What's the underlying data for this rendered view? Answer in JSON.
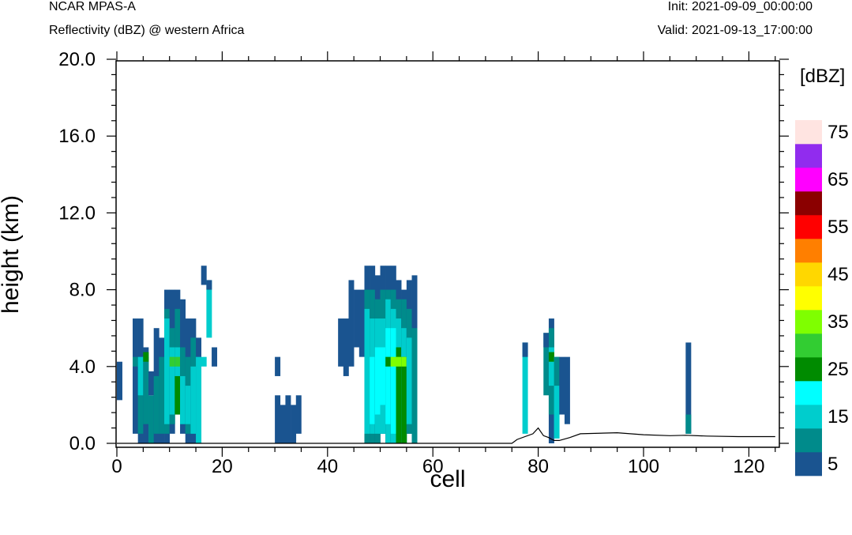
{
  "header": {
    "model": "NCAR MPAS-A",
    "field": "Reflectivity (dBZ) @ western Africa",
    "init": "Init: 2021-09-09_00:00:00",
    "valid": "Valid: 2021-09-13_17:00:00"
  },
  "chart_data": {
    "type": "heatmap",
    "title": "Reflectivity (dBZ) @ western Africa",
    "xlabel": "cell",
    "ylabel": "height (km)",
    "xlim": [
      0,
      125
    ],
    "ylim": [
      0,
      20
    ],
    "xticks": [
      "0",
      "20",
      "40",
      "60",
      "80",
      "100",
      "120"
    ],
    "yticks": [
      "0.0",
      "4.0",
      "8.0",
      "12.0",
      "16.0",
      "20.0"
    ],
    "colorbar": {
      "title": "[dBZ]",
      "levels": [
        5,
        10,
        15,
        20,
        25,
        30,
        35,
        40,
        45,
        50,
        55,
        60,
        65,
        70,
        75
      ],
      "labels": [
        "5",
        "15",
        "25",
        "35",
        "45",
        "55",
        "65",
        "75"
      ],
      "colors": [
        "#1a5490",
        "#008b8b",
        "#00cdcd",
        "#00ffff",
        "#008b00",
        "#32cd32",
        "#7fff00",
        "#ffff00",
        "#ffd700",
        "#ff7f00",
        "#ff0000",
        "#8b0000",
        "#ff00ff",
        "#912cee",
        "#ffe4e1"
      ]
    },
    "cell_width": 1,
    "cell_height_km": 0.5,
    "columns": [
      {
        "x": 0,
        "bins": [
          [
            2.25,
            4.25,
            5
          ]
        ]
      },
      {
        "x": 3,
        "bins": [
          [
            0.5,
            6.5,
            5
          ],
          [
            4.0,
            4.5,
            10
          ]
        ]
      },
      {
        "x": 4,
        "bins": [
          [
            0,
            6.5,
            5
          ],
          [
            0.5,
            4.0,
            10
          ],
          [
            2.5,
            4.5,
            15
          ]
        ]
      },
      {
        "x": 5,
        "bins": [
          [
            0,
            5.0,
            5
          ],
          [
            1.0,
            4.5,
            10
          ],
          [
            4.25,
            4.75,
            25
          ]
        ]
      },
      {
        "x": 6,
        "bins": [
          [
            0,
            2.5,
            10
          ],
          [
            2.5,
            3.75,
            5
          ]
        ]
      },
      {
        "x": 7,
        "bins": [
          [
            0,
            6.0,
            5
          ],
          [
            0.5,
            3.5,
            10
          ]
        ]
      },
      {
        "x": 8,
        "bins": [
          [
            0,
            5.5,
            5
          ],
          [
            0.5,
            4.5,
            10
          ]
        ]
      },
      {
        "x": 9,
        "bins": [
          [
            0,
            8.0,
            5
          ],
          [
            0.5,
            7.0,
            10
          ],
          [
            1.0,
            6.5,
            15
          ]
        ]
      },
      {
        "x": 10,
        "bins": [
          [
            0.5,
            8.0,
            5
          ],
          [
            1.0,
            6.0,
            10
          ],
          [
            1.5,
            5.0,
            15
          ],
          [
            4.0,
            4.5,
            30
          ]
        ]
      },
      {
        "x": 11,
        "bins": [
          [
            1.5,
            8.0,
            5
          ],
          [
            2.0,
            7.0,
            10
          ],
          [
            2.0,
            5.0,
            15
          ],
          [
            1.5,
            3.5,
            25
          ],
          [
            4.0,
            4.5,
            30
          ]
        ]
      },
      {
        "x": 12,
        "bins": [
          [
            0.5,
            7.5,
            5
          ],
          [
            1.0,
            5.0,
            10
          ],
          [
            1.0,
            3.5,
            15
          ]
        ]
      },
      {
        "x": 13,
        "bins": [
          [
            0,
            6.5,
            5
          ],
          [
            0.5,
            4.5,
            10
          ],
          [
            1.0,
            3.0,
            15
          ]
        ]
      },
      {
        "x": 14,
        "bins": [
          [
            0,
            6.5,
            5
          ],
          [
            0.5,
            5.5,
            10
          ],
          [
            0.5,
            4.0,
            15
          ]
        ]
      },
      {
        "x": 15,
        "bins": [
          [
            0,
            5.5,
            5
          ],
          [
            0,
            4.5,
            15
          ]
        ]
      },
      {
        "x": 16,
        "bins": [
          [
            8.25,
            9.25,
            5
          ],
          [
            4.0,
            4.5,
            15
          ]
        ]
      },
      {
        "x": 17,
        "bins": [
          [
            5.5,
            8.5,
            15
          ],
          [
            8.0,
            8.5,
            5
          ]
        ]
      },
      {
        "x": 18,
        "bins": [
          [
            4.0,
            5.0,
            5
          ]
        ]
      },
      {
        "x": 30,
        "bins": [
          [
            0,
            2.5,
            5
          ],
          [
            3.5,
            4.5,
            5
          ]
        ]
      },
      {
        "x": 31,
        "bins": [
          [
            0,
            2.0,
            5
          ]
        ]
      },
      {
        "x": 32,
        "bins": [
          [
            0,
            2.5,
            5
          ]
        ]
      },
      {
        "x": 33,
        "bins": [
          [
            0,
            2.0,
            5
          ]
        ]
      },
      {
        "x": 34,
        "bins": [
          [
            0.5,
            2.5,
            5
          ]
        ]
      },
      {
        "x": 42,
        "bins": [
          [
            4.0,
            6.5,
            5
          ]
        ]
      },
      {
        "x": 43,
        "bins": [
          [
            3.5,
            6.5,
            5
          ]
        ]
      },
      {
        "x": 44,
        "bins": [
          [
            4.0,
            8.5,
            5
          ]
        ]
      },
      {
        "x": 45,
        "bins": [
          [
            5.0,
            8.0,
            5
          ]
        ]
      },
      {
        "x": 46,
        "bins": [
          [
            4.5,
            8.0,
            5
          ]
        ]
      },
      {
        "x": 47,
        "bins": [
          [
            0,
            9.25,
            5
          ],
          [
            0,
            8.0,
            10
          ],
          [
            0.5,
            7.0,
            15
          ]
        ]
      },
      {
        "x": 48,
        "bins": [
          [
            0,
            9.25,
            5
          ],
          [
            0,
            8.0,
            10
          ],
          [
            0.5,
            6.5,
            15
          ],
          [
            1.0,
            4.5,
            20
          ]
        ]
      },
      {
        "x": 49,
        "bins": [
          [
            0,
            8.75,
            5
          ],
          [
            0,
            7.5,
            10
          ],
          [
            0.5,
            6.5,
            15
          ],
          [
            1.5,
            5.0,
            20
          ]
        ]
      },
      {
        "x": 50,
        "bins": [
          [
            0.5,
            9.25,
            5
          ],
          [
            0.5,
            8.0,
            10
          ],
          [
            0.5,
            6.5,
            15
          ],
          [
            2.0,
            5.0,
            20
          ]
        ]
      },
      {
        "x": 51,
        "bins": [
          [
            0,
            9.25,
            5
          ],
          [
            0,
            8.0,
            10
          ],
          [
            0,
            7.5,
            15
          ],
          [
            1.0,
            6.0,
            20
          ],
          [
            4.0,
            4.5,
            25
          ]
        ]
      },
      {
        "x": 52,
        "bins": [
          [
            0,
            9.25,
            5
          ],
          [
            0,
            8.0,
            10
          ],
          [
            0,
            7.0,
            15
          ],
          [
            0.5,
            6.0,
            20
          ],
          [
            4.0,
            4.5,
            35
          ]
        ]
      },
      {
        "x": 53,
        "bins": [
          [
            0,
            8.5,
            5
          ],
          [
            0,
            7.5,
            10
          ],
          [
            0,
            6.5,
            15
          ],
          [
            0,
            5.0,
            25
          ],
          [
            4.0,
            4.5,
            35
          ]
        ]
      },
      {
        "x": 54,
        "bins": [
          [
            0,
            8.0,
            5
          ],
          [
            0,
            7.5,
            10
          ],
          [
            0,
            6.0,
            15
          ],
          [
            0,
            4.5,
            25
          ],
          [
            4.0,
            4.5,
            35
          ]
        ]
      },
      {
        "x": 55,
        "bins": [
          [
            0.5,
            8.5,
            5
          ],
          [
            0.5,
            7.0,
            10
          ],
          [
            1.0,
            5.5,
            15
          ]
        ]
      },
      {
        "x": 56,
        "bins": [
          [
            0,
            8.75,
            5
          ],
          [
            0,
            6.0,
            10
          ]
        ]
      },
      {
        "x": 77,
        "bins": [
          [
            0.5,
            5.25,
            15
          ],
          [
            4.5,
            5.25,
            5
          ]
        ]
      },
      {
        "x": 81,
        "bins": [
          [
            2.5,
            5.75,
            10
          ],
          [
            5.0,
            5.75,
            5
          ]
        ]
      },
      {
        "x": 82,
        "bins": [
          [
            0,
            6.5,
            5
          ],
          [
            1.5,
            6.0,
            10
          ],
          [
            3.0,
            5.0,
            15
          ],
          [
            4.25,
            4.75,
            25
          ]
        ]
      },
      {
        "x": 83,
        "bins": [
          [
            0.25,
            4.5,
            15
          ],
          [
            3.0,
            4.5,
            10
          ]
        ]
      },
      {
        "x": 84,
        "bins": [
          [
            1.5,
            4.5,
            5
          ]
        ]
      },
      {
        "x": 85,
        "bins": [
          [
            1.0,
            4.5,
            5
          ]
        ]
      },
      {
        "x": 108,
        "bins": [
          [
            0.5,
            5.25,
            5
          ],
          [
            0.5,
            1.5,
            10
          ]
        ]
      }
    ],
    "terrain_km": [
      [
        0,
        0
      ],
      [
        75,
        0
      ],
      [
        76,
        0.2
      ],
      [
        79,
        0.5
      ],
      [
        80,
        0.8
      ],
      [
        81,
        0.4
      ],
      [
        82,
        0.3
      ],
      [
        83,
        0.15
      ],
      [
        84,
        0.15
      ],
      [
        86,
        0.3
      ],
      [
        88,
        0.5
      ],
      [
        95,
        0.55
      ],
      [
        100,
        0.45
      ],
      [
        105,
        0.4
      ],
      [
        108,
        0.42
      ],
      [
        112,
        0.38
      ],
      [
        118,
        0.35
      ],
      [
        125,
        0.35
      ]
    ]
  }
}
